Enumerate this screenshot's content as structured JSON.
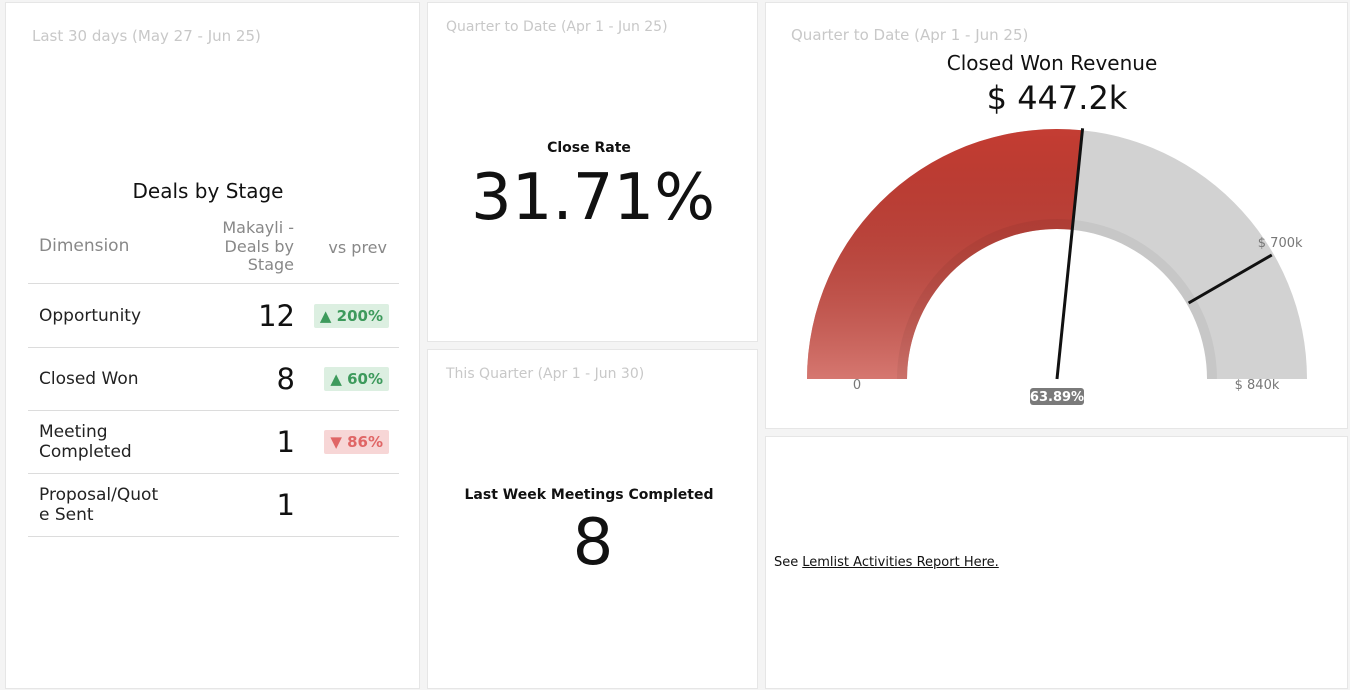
{
  "deals_by_stage": {
    "period": "Last 30 days (May 27 - Jun 25)",
    "title": "Deals by Stage",
    "columns": [
      "Dimension",
      "Makayli - Deals by Stage",
      "vs prev"
    ],
    "rows": [
      {
        "dimension": "Opportunity",
        "value": 12,
        "change": "▲ 200%"
      },
      {
        "dimension": "Closed Won",
        "value": 8,
        "change": "▲ 60%"
      },
      {
        "dimension": "Meeting Completed",
        "value": 1,
        "change": "▼ 86%"
      },
      {
        "dimension": "Proposal/Quote Sent",
        "value": 1
      }
    ]
  },
  "close_rate": {
    "period": "Quarter to Date (Apr 1 - Jun 25)",
    "title": "Close Rate",
    "value": "31.71%"
  },
  "meetings": {
    "period": "This Quarter (Apr 1 - Jun 30)",
    "title": "Last Week Meetings Completed",
    "value": 8
  },
  "revenue": {
    "period": "Quarter to Date (Apr 1 - Jun 25)",
    "title": "Closed Won Revenue",
    "value": 447200,
    "value_label": "$ 447.2k",
    "min": {
      "value": 0,
      "label": "0"
    },
    "max": {
      "value": 840000,
      "label": "$ 840k"
    },
    "target": {
      "value": 700000,
      "label": "$ 700k"
    },
    "target_percent": "63.89%",
    "colors": {
      "fill": "#c43d33",
      "track": "#d2d2d2"
    }
  },
  "note": {
    "prefix": "See",
    "link": "Lemlist Activities Report Here."
  }
}
